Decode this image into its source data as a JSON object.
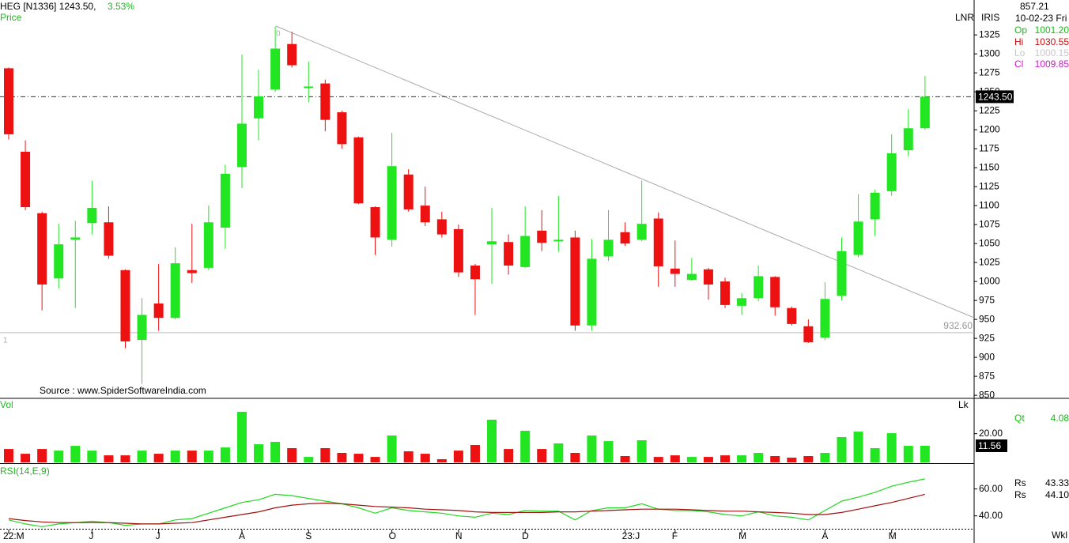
{
  "header": {
    "title": "HEG [N1336] 1243.50,",
    "change": "3.53%",
    "panel_label": "Price",
    "source": "Source : www.SpiderSoftwareIndia.com",
    "period": "Wkl",
    "info": {
      "top": "857.21",
      "date": "10-02-23 Fri",
      "left_tag": "LNR",
      "right_tag": "IRIS",
      "items": [
        {
          "name": "Op",
          "value": "1001.20"
        },
        {
          "name": "Hi",
          "value": "1030.55"
        },
        {
          "name": "Lo",
          "value": "1000.15"
        },
        {
          "name": "Cl",
          "value": "1009.85"
        }
      ]
    }
  },
  "chart_data": [
    {
      "type": "candlestick",
      "up_color": "#22e622",
      "down_color": "#ee1111",
      "categories": [
        "22:M",
        null,
        null,
        null,
        null,
        "J",
        null,
        null,
        null,
        "J",
        null,
        null,
        null,
        null,
        "A",
        null,
        null,
        null,
        "S",
        null,
        null,
        null,
        null,
        "O",
        null,
        null,
        null,
        "N",
        null,
        null,
        null,
        "D",
        null,
        null,
        null,
        null,
        null,
        "23:J",
        null,
        null,
        "F",
        null,
        null,
        null,
        "M",
        null,
        null,
        null,
        null,
        "A",
        null,
        null,
        null,
        "M",
        null,
        null
      ],
      "open": [
        1281,
        1171,
        1090,
        1004,
        1055,
        1077,
        1078,
        1015,
        923,
        971,
        952,
        1015,
        1018,
        1071,
        1151,
        1215,
        1253,
        1313,
        1255,
        1261,
        1223,
        1190,
        1098,
        1055,
        1141,
        1100,
        1082,
        1069,
        1021,
        1049,
        1052,
        1019,
        1067,
        1053,
        1058,
        942,
        1033,
        1065,
        1055,
        1083,
        1017,
        1002,
        1016,
        1000,
        968,
        978,
        1006,
        965,
        941,
        926,
        981,
        1035,
        1082,
        1119,
        1173,
        1202
      ],
      "high": [
        1282,
        1186,
        1092,
        1076,
        1080,
        1133,
        1099,
        1016,
        978,
        1023,
        1045,
        1076,
        1100,
        1154,
        1299,
        1279,
        1336,
        1329,
        1290,
        1266,
        1225,
        1191,
        1099,
        1196,
        1148,
        1125,
        1092,
        1075,
        1023,
        1097,
        1062,
        1099,
        1094,
        1113,
        1067,
        1056,
        1094,
        1078,
        1133,
        1091,
        1054,
        1031,
        1018,
        1005,
        985,
        1021,
        1007,
        967,
        950,
        999,
        1058,
        1115,
        1121,
        1194,
        1227,
        1271
      ],
      "low": [
        1187,
        1094,
        962,
        991,
        965,
        1062,
        1030,
        912,
        865,
        935,
        950,
        998,
        1015,
        1043,
        1123,
        1186,
        1250,
        1282,
        1236,
        1198,
        1175,
        1102,
        1035,
        1046,
        1092,
        1073,
        1058,
        1006,
        956,
        997,
        1009,
        1018,
        1040,
        1039,
        935,
        935,
        1027,
        1047,
        1053,
        993,
        993,
        1001,
        976,
        965,
        956,
        974,
        955,
        942,
        919,
        923,
        975,
        1032,
        1060,
        1113,
        1165,
        1200
      ],
      "close": [
        1194,
        1098,
        996,
        1049,
        1058,
        1097,
        1034,
        921,
        956,
        952,
        1024,
        1011,
        1078,
        1142,
        1208,
        1244,
        1307,
        1285,
        1257,
        1213,
        1181,
        1103,
        1058,
        1152,
        1095,
        1078,
        1062,
        1012,
        1003,
        1053,
        1021,
        1060,
        1051,
        1055,
        942,
        1030,
        1055,
        1050,
        1076,
        1020,
        1010,
        1010,
        996,
        969,
        978,
        1007,
        966,
        944,
        920,
        977,
        1040,
        1079,
        1117,
        1169,
        1202,
        1243.5
      ],
      "ylim": [
        847,
        1371
      ],
      "yticks": [
        850,
        875,
        900,
        925,
        950,
        975,
        1000,
        1025,
        1050,
        1075,
        1100,
        1125,
        1150,
        1175,
        1200,
        1225,
        1250,
        1275,
        1300,
        1325
      ],
      "reference_lines": [
        {
          "value": 1243.5,
          "label": "1243.50"
        },
        {
          "value": 932.6,
          "label": "932.60"
        }
      ]
    },
    {
      "type": "bar",
      "title": "Vol",
      "unit_tag": "Lk",
      "readout_name": "Qt",
      "readout_value": "4.08",
      "values": [
        9.3,
        6.0,
        9.3,
        8.2,
        11.5,
        8.2,
        4.9,
        4.9,
        8.2,
        6.0,
        8.2,
        8.2,
        8.2,
        10.4,
        35.2,
        12.6,
        14.3,
        9.9,
        3.8,
        9.9,
        6.6,
        6.0,
        3.8,
        18.7,
        7.7,
        6.0,
        2.2,
        8.2,
        12.1,
        29.7,
        9.3,
        22.0,
        9.3,
        13.2,
        6.6,
        18.7,
        14.8,
        4.4,
        15.4,
        3.8,
        4.9,
        3.8,
        3.8,
        4.9,
        4.9,
        6.6,
        4.4,
        3.3,
        4.4,
        6.6,
        17.6,
        21.4,
        9.9,
        20.3,
        11.5,
        11.56
      ],
      "last_value_label": "11.56",
      "ylim": [
        0,
        44
      ],
      "yticks": [
        {
          "value": 20,
          "label": "20.00"
        }
      ]
    },
    {
      "type": "line",
      "title": "RSI(14,E,9)",
      "series": [
        {
          "name": "Rs",
          "readout": "43.33",
          "color": "#22d822",
          "values": [
            37,
            34,
            32,
            34,
            35,
            36,
            35,
            33,
            34,
            34,
            37,
            38,
            42,
            46,
            50,
            52,
            56,
            55,
            53,
            51,
            49,
            46,
            42,
            46,
            44,
            43,
            42,
            40,
            39,
            42,
            41,
            44,
            43.5,
            43.5,
            37,
            44,
            46,
            46,
            49,
            45,
            44,
            44,
            43,
            41,
            40,
            43,
            40,
            39,
            37,
            44,
            51,
            54,
            57.5,
            62,
            65,
            67.5
          ]
        },
        {
          "name": "Rs",
          "readout": "44.10",
          "color": "#a01010",
          "values": [
            38,
            36.5,
            35.5,
            35,
            35,
            35,
            35,
            34.5,
            34,
            34,
            34.5,
            35,
            37,
            39,
            41,
            43,
            46,
            48,
            49,
            49.5,
            49,
            48,
            47,
            46.5,
            46,
            45,
            44.5,
            44,
            43,
            42.5,
            42.5,
            42.5,
            42.5,
            43,
            43,
            43.5,
            44,
            44.5,
            45,
            45,
            45,
            44.5,
            44,
            43.5,
            43.5,
            43,
            42.5,
            42,
            41,
            41,
            42.5,
            45,
            47.5,
            50,
            53,
            56
          ]
        }
      ],
      "ylim": [
        31,
        78
      ],
      "yticks": [
        {
          "value": 60,
          "label": "60.00"
        },
        {
          "value": 40,
          "label": "40.00"
        }
      ]
    }
  ]
}
